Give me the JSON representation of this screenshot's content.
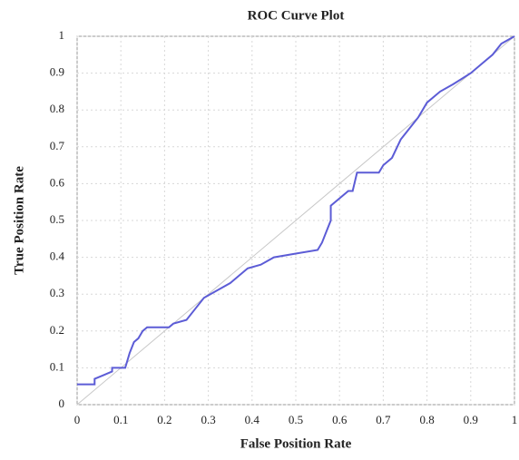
{
  "chart_data": {
    "type": "line",
    "title": "ROC Curve Plot",
    "x_label": "False Position Rate",
    "y_label": "True Position Rate",
    "xlim": [
      0,
      1
    ],
    "ylim": [
      0,
      1
    ],
    "xticks": [
      0,
      0.1,
      0.2,
      0.3,
      0.4,
      0.5,
      0.6,
      0.7,
      0.8,
      0.9,
      1
    ],
    "yticks": [
      0,
      0.1,
      0.2,
      0.3,
      0.4,
      0.5,
      0.6,
      0.7,
      0.8,
      0.9,
      1
    ],
    "grid": true,
    "series": [
      {
        "color": "#5c5cd6",
        "x": [
          0,
          0.04,
          0.04,
          0.06,
          0.08,
          0.08,
          0.11,
          0.12,
          0.13,
          0.14,
          0.15,
          0.16,
          0.21,
          0.22,
          0.25,
          0.27,
          0.29,
          0.32,
          0.35,
          0.37,
          0.39,
          0.42,
          0.45,
          0.5,
          0.55,
          0.56,
          0.57,
          0.58,
          0.58,
          0.6,
          0.62,
          0.63,
          0.64,
          0.69,
          0.7,
          0.72,
          0.74,
          0.76,
          0.78,
          0.8,
          0.83,
          0.86,
          0.9,
          0.93,
          0.95,
          0.97,
          1
        ],
        "values": [
          0.055,
          0.055,
          0.07,
          0.08,
          0.09,
          0.1,
          0.1,
          0.14,
          0.17,
          0.18,
          0.2,
          0.21,
          0.21,
          0.22,
          0.23,
          0.26,
          0.29,
          0.31,
          0.33,
          0.35,
          0.37,
          0.38,
          0.4,
          0.41,
          0.42,
          0.44,
          0.47,
          0.5,
          0.54,
          0.56,
          0.58,
          0.58,
          0.63,
          0.63,
          0.65,
          0.67,
          0.72,
          0.75,
          0.78,
          0.82,
          0.85,
          0.87,
          0.9,
          0.93,
          0.95,
          0.98,
          1
        ]
      },
      {
        "color": "#c8c8c8",
        "x": [
          0,
          1
        ],
        "values": [
          0,
          1
        ]
      }
    ]
  }
}
